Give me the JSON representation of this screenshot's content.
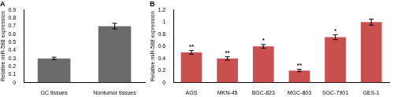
{
  "chart_data": [
    {
      "type": "bar",
      "title": "A",
      "categories": [
        "GC tissues",
        "Nontumor tissues"
      ],
      "values": [
        0.3,
        0.7
      ],
      "errors": [
        0.015,
        0.035
      ],
      "color": "#6b6b6b",
      "y_label": "Relative miR-588 expression",
      "ylim": [
        0,
        0.9
      ],
      "yticks": [
        0,
        0.1,
        0.2,
        0.3,
        0.4,
        0.5,
        0.6,
        0.7,
        0.8,
        0.9
      ],
      "grid": false
    },
    {
      "type": "bar",
      "title": "B",
      "categories": [
        "AGS",
        "MKN-45",
        "BGC-823",
        "MGC-803",
        "SGC-7901",
        "GES-1"
      ],
      "values": [
        0.5,
        0.4,
        0.6,
        0.2,
        0.75,
        1.0
      ],
      "errors": [
        0.03,
        0.03,
        0.03,
        0.02,
        0.04,
        0.05
      ],
      "annotations": [
        "**",
        "**",
        "*",
        "**",
        "*",
        null
      ],
      "color": "#c9504f",
      "y_label": "Relative miR-588 expression",
      "ylim": [
        0,
        1.2
      ],
      "yticks": [
        0,
        0.2,
        0.4,
        0.6,
        0.8,
        1,
        1.2
      ],
      "grid": false
    }
  ]
}
